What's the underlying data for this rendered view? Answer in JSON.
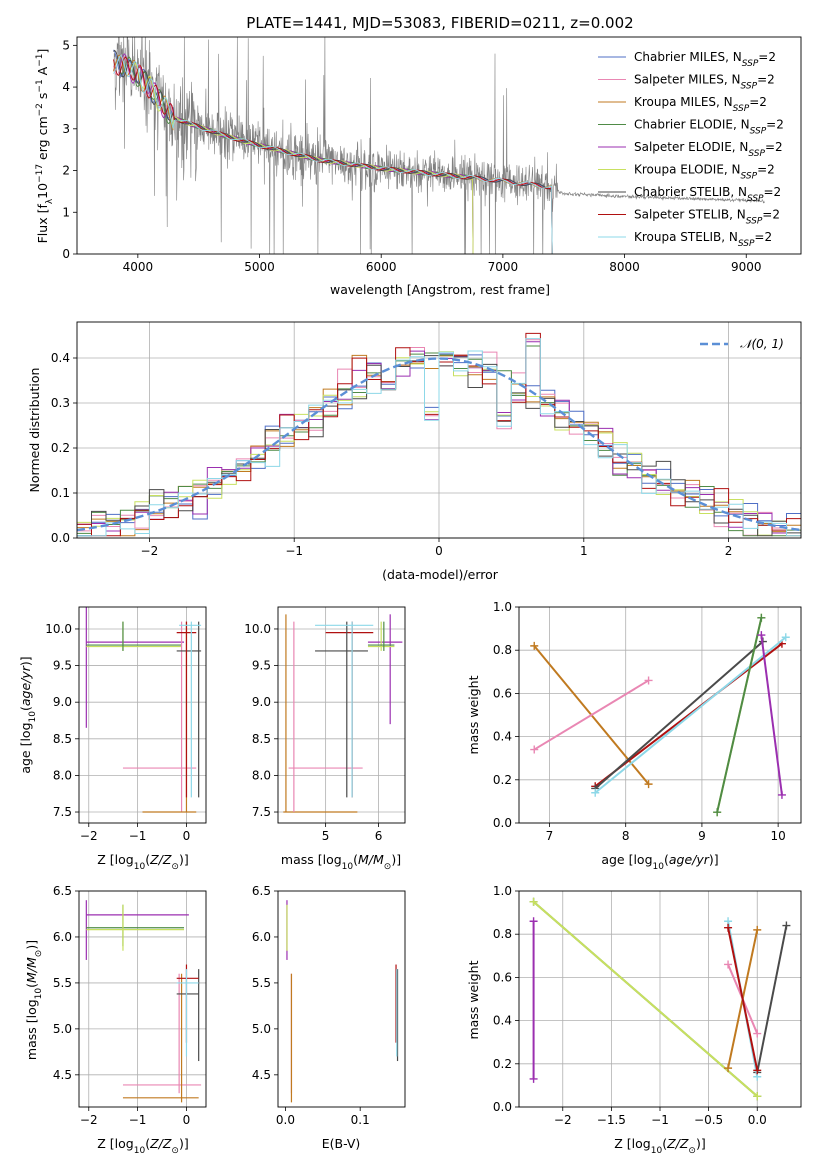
{
  "title": "PLATE=1441, MJD=53083, FIBERID=0211, z=0.002",
  "colors": {
    "Chabrier MILES": "#4f6fc6",
    "Salpeter MILES": "#e987b3",
    "Kroupa MILES": "#c07a20",
    "Chabrier ELODIE": "#4f8b46",
    "Salpeter ELODIE": "#9b2fb0",
    "Kroupa ELODIE": "#c8e060",
    "Chabrier STELIB": "#4a4a4a",
    "Salpeter STELIB": "#b01010",
    "Kroupa STELIB": "#8dd8e8",
    "data": "#808080",
    "normal": "#5b8fd6"
  },
  "chart_data": [
    {
      "id": "spectrum",
      "type": "line",
      "xlabel": "wavelength [Angstrom, rest frame]",
      "ylabel": "Flux [f_λ 10^-17 erg cm^-2 s^-1 A^-1]",
      "xlim": [
        3500,
        9450
      ],
      "ylim": [
        0,
        5.2
      ],
      "xticks": [
        4000,
        5000,
        6000,
        7000,
        8000,
        9000
      ],
      "yticks": [
        0,
        1,
        2,
        3,
        4,
        5
      ],
      "legend_position": "top-right",
      "legend": [
        {
          "prefix": "Chabrier MILES, N",
          "sub": "SSP",
          "suffix": "=2",
          "key": "Chabrier MILES"
        },
        {
          "prefix": "Salpeter MILES, N",
          "sub": "SSP",
          "suffix": "=2",
          "key": "Salpeter MILES"
        },
        {
          "prefix": "Kroupa MILES, N",
          "sub": "SSP",
          "suffix": "=2",
          "key": "Kroupa MILES"
        },
        {
          "prefix": "Chabrier ELODIE, N",
          "sub": "SSP",
          "suffix": "=2",
          "key": "Chabrier ELODIE"
        },
        {
          "prefix": "Salpeter ELODIE, N",
          "sub": "SSP",
          "suffix": "=2",
          "key": "Salpeter ELODIE"
        },
        {
          "prefix": "Kroupa ELODIE, N",
          "sub": "SSP",
          "suffix": "=2",
          "key": "Kroupa ELODIE"
        },
        {
          "prefix": "Chabrier STELIB, N",
          "sub": "SSP",
          "suffix": "=2",
          "key": "Chabrier STELIB"
        },
        {
          "prefix": "Salpeter STELIB, N",
          "sub": "SSP",
          "suffix": "=2",
          "key": "Salpeter STELIB"
        },
        {
          "prefix": "Kroupa STELIB, N",
          "sub": "SSP",
          "suffix": "=2",
          "key": "Kroupa STELIB"
        }
      ],
      "continuum": {
        "x": [
          3800,
          3900,
          4000,
          4100,
          4200,
          4300,
          4400,
          4500,
          4700,
          5000,
          5500,
          6000,
          6500,
          7000,
          7400,
          7500,
          8000,
          8500,
          9000,
          9150
        ],
        "y": [
          4.6,
          4.5,
          4.3,
          4.0,
          3.6,
          3.25,
          3.15,
          3.05,
          2.85,
          2.6,
          2.25,
          2.05,
          1.9,
          1.75,
          1.6,
          1.45,
          1.38,
          1.33,
          1.28,
          1.25
        ]
      },
      "data_range": [
        3800,
        9150
      ],
      "data_noisy_until": 7450,
      "model_ranges": {
        "Chabrier MILES": [
          3800,
          7400
        ],
        "Salpeter MILES": [
          3800,
          7400
        ],
        "Kroupa MILES": [
          3800,
          7400
        ],
        "Chabrier ELODIE": [
          3850,
          6750
        ],
        "Salpeter ELODIE": [
          3850,
          6750
        ],
        "Kroupa ELODIE": [
          3950,
          6750
        ],
        "Chabrier STELIB": [
          3800,
          7400
        ],
        "Salpeter STELIB": [
          3800,
          7400
        ],
        "Kroupa STELIB": [
          3800,
          7400
        ]
      }
    },
    {
      "id": "residuals",
      "type": "line",
      "xlabel": "(data-model)/error",
      "ylabel": "Normed distribution",
      "xlim": [
        -2.5,
        2.5
      ],
      "ylim": [
        0,
        0.48
      ],
      "xticks": [
        -2,
        -1,
        0,
        1,
        2
      ],
      "yticks": [
        0.0,
        0.1,
        0.2,
        0.3,
        0.4
      ],
      "grid": true,
      "legend": [
        "𝒩(0, 1)"
      ],
      "legend_position": "top-right",
      "bin_width": 0.1,
      "bin_start": -2.5,
      "bins": 50,
      "spikes": [
        {
          "x": 0.65,
          "y": 0.46
        },
        {
          "x": -0.05,
          "y": 0.3
        },
        {
          "x": 0.55,
          "y": 0.33
        },
        {
          "x": 0.45,
          "y": 0.28
        },
        {
          "x": -0.35,
          "y": 0.35
        }
      ]
    },
    {
      "id": "age-vs-Z",
      "type": "scatter",
      "xlabel": "Z [log10(Z/Z⊙)]",
      "ylabel": "age [log10(age/yr)]",
      "xlim": [
        -2.2,
        0.4
      ],
      "ylim": [
        7.35,
        10.3
      ],
      "xticks": [
        -2,
        -1,
        0
      ],
      "yticks": [
        7.5,
        8.0,
        8.5,
        9.0,
        9.5,
        10.0
      ],
      "grid": true,
      "crosses": [
        {
          "key": "Salpeter ELODIE",
          "x": [
            -2.05,
            -0.05
          ],
          "y": [
            8.65,
            10.3
          ],
          "cx": -2.05,
          "cy": 9.82
        },
        {
          "key": "Kroupa ELODIE",
          "x": [
            -2.05,
            -0.1
          ],
          "y": [
            9.7,
            10.1
          ],
          "cx": -1.3,
          "cy": 9.76
        },
        {
          "key": "Chabrier ELODIE",
          "x": [
            -2.05,
            -0.1
          ],
          "y": [
            9.7,
            10.1
          ],
          "cx": -1.3,
          "cy": 9.78
        },
        {
          "key": "Salpeter MILES",
          "x": [
            -1.3,
            0.2
          ],
          "y": [
            7.5,
            10.1
          ],
          "cx": -0.1,
          "cy": 8.1
        },
        {
          "key": "Kroupa MILES",
          "x": [
            -0.9,
            0.2
          ],
          "y": [
            7.5,
            10.1
          ],
          "cx": 0.0,
          "cy": 7.5
        },
        {
          "key": "Chabrier STELIB",
          "x": [
            -0.2,
            0.3
          ],
          "y": [
            7.7,
            10.1
          ],
          "cx": 0.25,
          "cy": 9.7
        },
        {
          "key": "Salpeter STELIB",
          "x": [
            -0.2,
            0.2
          ],
          "y": [
            7.7,
            10.1
          ],
          "cx": 0.0,
          "cy": 9.95
        },
        {
          "key": "Kroupa STELIB",
          "x": [
            -0.15,
            0.3
          ],
          "y": [
            7.7,
            10.1
          ],
          "cx": 0.1,
          "cy": 10.05
        }
      ]
    },
    {
      "id": "age-vs-mass",
      "type": "scatter",
      "xlabel": "mass [log10(M/M⊙)]",
      "ylabel": "",
      "xlim": [
        4.1,
        6.5
      ],
      "ylim": [
        7.35,
        10.3
      ],
      "xticks": [
        5,
        6
      ],
      "yticks": [
        7.5,
        8.0,
        8.5,
        9.0,
        9.5,
        10.0
      ],
      "grid": true,
      "crosses": [
        {
          "key": "Kroupa MILES",
          "x": [
            4.2,
            5.6
          ],
          "y": [
            7.5,
            10.2
          ],
          "cx": 4.25,
          "cy": 7.5
        },
        {
          "key": "Salpeter MILES",
          "x": [
            4.3,
            5.7
          ],
          "y": [
            7.5,
            10.1
          ],
          "cx": 4.4,
          "cy": 8.1
        },
        {
          "key": "Salpeter STELIB",
          "x": [
            5.0,
            5.9
          ],
          "y": [
            7.7,
            10.1
          ],
          "cx": 5.5,
          "cy": 9.95
        },
        {
          "key": "Chabrier STELIB",
          "x": [
            4.8,
            5.8
          ],
          "y": [
            7.7,
            10.1
          ],
          "cx": 5.4,
          "cy": 9.7
        },
        {
          "key": "Kroupa STELIB",
          "x": [
            4.8,
            5.9
          ],
          "y": [
            7.7,
            10.1
          ],
          "cx": 5.5,
          "cy": 10.05
        },
        {
          "key": "Salpeter ELODIE",
          "x": [
            5.8,
            6.45
          ],
          "y": [
            8.7,
            10.2
          ],
          "cx": 6.22,
          "cy": 9.82
        },
        {
          "key": "Kroupa ELODIE",
          "x": [
            5.8,
            6.3
          ],
          "y": [
            9.7,
            10.1
          ],
          "cx": 6.05,
          "cy": 9.76
        },
        {
          "key": "Chabrier ELODIE",
          "x": [
            5.8,
            6.3
          ],
          "y": [
            9.7,
            10.1
          ],
          "cx": 6.1,
          "cy": 9.78
        }
      ]
    },
    {
      "id": "weight-vs-age",
      "type": "line",
      "xlabel": "age [log10(age/yr)]",
      "ylabel": "mass weight",
      "xlim": [
        6.6,
        10.3
      ],
      "ylim": [
        0.0,
        1.0
      ],
      "xticks": [
        7,
        8,
        9,
        10
      ],
      "yticks": [
        0.0,
        0.2,
        0.4,
        0.6,
        0.8,
        1.0
      ],
      "grid": true,
      "series": [
        {
          "key": "Kroupa MILES",
          "x": [
            6.8,
            8.3
          ],
          "y": [
            0.82,
            0.18
          ]
        },
        {
          "key": "Salpeter MILES",
          "x": [
            6.8,
            8.3
          ],
          "y": [
            0.34,
            0.66
          ]
        },
        {
          "key": "Salpeter STELIB",
          "x": [
            7.6,
            10.05
          ],
          "y": [
            0.17,
            0.83
          ]
        },
        {
          "key": "Chabrier STELIB",
          "x": [
            7.6,
            9.8
          ],
          "y": [
            0.16,
            0.84
          ]
        },
        {
          "key": "Kroupa STELIB",
          "x": [
            7.6,
            10.1
          ],
          "y": [
            0.14,
            0.86
          ]
        },
        {
          "key": "Kroupa ELODIE",
          "x": [
            9.2,
            9.78
          ],
          "y": [
            0.05,
            0.95
          ]
        },
        {
          "key": "Chabrier ELODIE",
          "x": [
            9.2,
            9.78
          ],
          "y": [
            0.05,
            0.95
          ]
        },
        {
          "key": "Salpeter ELODIE",
          "x": [
            9.78,
            10.05
          ],
          "y": [
            0.87,
            0.13
          ]
        }
      ]
    },
    {
      "id": "mass-vs-Z",
      "type": "scatter",
      "xlabel": "Z [log10(Z/Z⊙)]",
      "ylabel": "mass [log10(M/M⊙)]",
      "xlim": [
        -2.2,
        0.4
      ],
      "ylim": [
        4.15,
        6.5
      ],
      "xticks": [
        -2,
        -1,
        0
      ],
      "yticks": [
        4.5,
        5.0,
        5.5,
        6.0,
        6.5
      ],
      "grid": true,
      "crosses": [
        {
          "key": "Salpeter ELODIE",
          "x": [
            -2.05,
            0.05
          ],
          "y": [
            5.75,
            6.4
          ],
          "cx": -2.05,
          "cy": 6.24
        },
        {
          "key": "Chabrier ELODIE",
          "x": [
            -2.05,
            -0.05
          ],
          "y": [
            5.9,
            6.35
          ],
          "cx": -1.3,
          "cy": 6.1
        },
        {
          "key": "Kroupa ELODIE",
          "x": [
            -2.05,
            -0.05
          ],
          "y": [
            5.85,
            6.35
          ],
          "cx": -1.3,
          "cy": 6.08
        },
        {
          "key": "Salpeter MILES",
          "x": [
            -1.3,
            0.3
          ],
          "y": [
            4.3,
            5.6
          ],
          "cx": -0.15,
          "cy": 4.39
        },
        {
          "key": "Kroupa MILES",
          "x": [
            -1.3,
            0.25
          ],
          "y": [
            4.2,
            5.6
          ],
          "cx": -0.1,
          "cy": 4.25
        },
        {
          "key": "Chabrier STELIB",
          "x": [
            -0.2,
            0.25
          ],
          "y": [
            4.65,
            5.65
          ],
          "cx": 0.25,
          "cy": 5.38
        },
        {
          "key": "Salpeter STELIB",
          "x": [
            -0.2,
            0.25
          ],
          "y": [
            4.85,
            5.7
          ],
          "cx": 0.0,
          "cy": 5.55
        },
        {
          "key": "Kroupa STELIB",
          "x": [
            -0.2,
            0.25
          ],
          "y": [
            4.7,
            5.65
          ],
          "cx": 0.0,
          "cy": 5.5
        }
      ]
    },
    {
      "id": "mass-vs-ebv",
      "type": "scatter",
      "xlabel": "E(B-V)",
      "ylabel": "",
      "xlim": [
        -0.01,
        0.16
      ],
      "ylim": [
        4.15,
        6.5
      ],
      "xticks": [
        0.0,
        0.1
      ],
      "yticks": [
        4.5,
        5.0,
        5.5,
        6.0,
        6.5
      ],
      "grid": false,
      "crosses": [
        {
          "key": "Salpeter ELODIE",
          "x": [
            0.002,
            0.002
          ],
          "y": [
            5.75,
            6.4
          ],
          "cx": 0.002,
          "cy": 6.24
        },
        {
          "key": "Kroupa ELODIE",
          "x": [
            0.002,
            0.002
          ],
          "y": [
            5.85,
            6.35
          ],
          "cx": 0.002,
          "cy": 6.08
        },
        {
          "key": "Salpeter MILES",
          "x": [
            0.008,
            0.008
          ],
          "y": [
            4.3,
            5.6
          ],
          "cx": 0.008,
          "cy": 4.39
        },
        {
          "key": "Kroupa MILES",
          "x": [
            0.008,
            0.008
          ],
          "y": [
            4.2,
            5.6
          ],
          "cx": 0.008,
          "cy": 4.25
        },
        {
          "key": "Salpeter STELIB",
          "x": [
            0.148,
            0.148
          ],
          "y": [
            4.85,
            5.7
          ],
          "cx": 0.148,
          "cy": 5.55
        },
        {
          "key": "Chabrier STELIB",
          "x": [
            0.15,
            0.15
          ],
          "y": [
            4.65,
            5.65
          ],
          "cx": 0.15,
          "cy": 5.38
        },
        {
          "key": "Kroupa STELIB",
          "x": [
            0.149,
            0.149
          ],
          "y": [
            4.7,
            5.65
          ],
          "cx": 0.149,
          "cy": 5.5
        }
      ]
    },
    {
      "id": "weight-vs-Z",
      "type": "line",
      "xlabel": "Z [log10(Z/Z⊙)]",
      "ylabel": "mass weight",
      "xlim": [
        -2.45,
        0.45
      ],
      "ylim": [
        0.0,
        1.0
      ],
      "xticks": [
        -2.0,
        -1.5,
        -1.0,
        -0.5,
        0.0
      ],
      "yticks": [
        0.0,
        0.2,
        0.4,
        0.6,
        0.8,
        1.0
      ],
      "grid": true,
      "series": [
        {
          "key": "Salpeter ELODIE",
          "x": [
            -2.3,
            -2.3
          ],
          "y": [
            0.13,
            0.86
          ]
        },
        {
          "key": "Chabrier ELODIE",
          "x": [
            -2.3,
            0.0
          ],
          "y": [
            0.95,
            0.05
          ]
        },
        {
          "key": "Kroupa ELODIE",
          "x": [
            -2.3,
            0.0
          ],
          "y": [
            0.95,
            0.05
          ]
        },
        {
          "key": "Salpeter MILES",
          "x": [
            -0.3,
            0.0
          ],
          "y": [
            0.66,
            0.34
          ]
        },
        {
          "key": "Kroupa MILES",
          "x": [
            -0.3,
            0.0
          ],
          "y": [
            0.18,
            0.82
          ]
        },
        {
          "key": "Chabrier STELIB",
          "x": [
            0.0,
            0.3
          ],
          "y": [
            0.16,
            0.84
          ]
        },
        {
          "key": "Kroupa STELIB",
          "x": [
            -0.3,
            0.0
          ],
          "y": [
            0.86,
            0.14
          ]
        },
        {
          "key": "Salpeter STELIB",
          "x": [
            -0.3,
            0.0
          ],
          "y": [
            0.83,
            0.17
          ]
        }
      ]
    }
  ]
}
